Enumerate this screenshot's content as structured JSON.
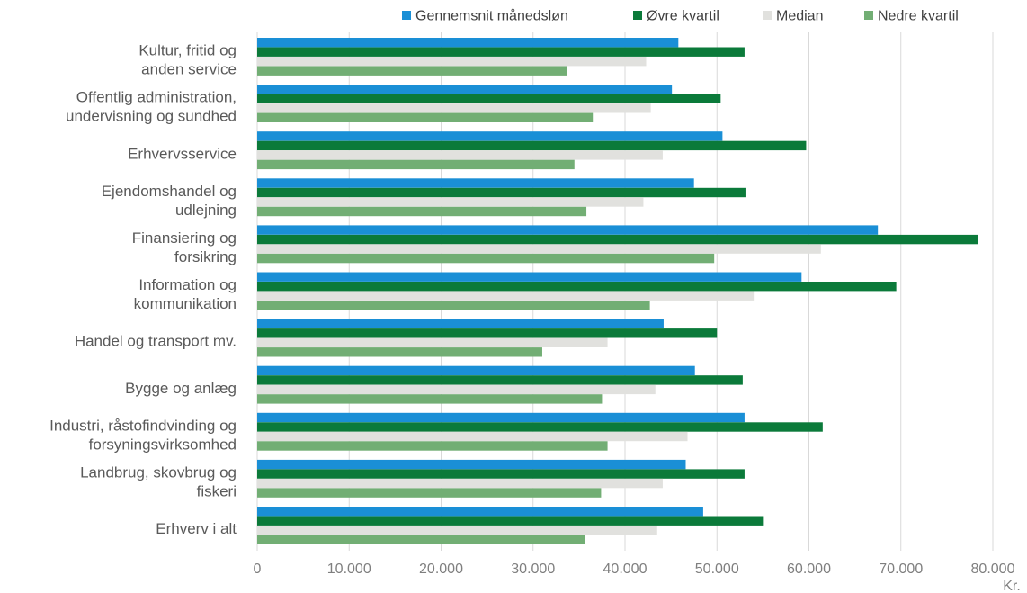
{
  "chart_data": {
    "type": "bar",
    "orientation": "horizontal",
    "categories": [
      [
        "Kultur, fritid og",
        "anden service"
      ],
      [
        "Offentlig administration,",
        "undervisning og sundhed"
      ],
      [
        "Erhvervsservice"
      ],
      [
        "Ejendomshandel og",
        "udlejning"
      ],
      [
        "Finansiering og",
        "forsikring"
      ],
      [
        "Information og",
        "kommunikation"
      ],
      [
        "Handel og transport mv."
      ],
      [
        "Bygge og anlæg"
      ],
      [
        "Industri, råstofindvinding og",
        "forsyningsvirksomhed"
      ],
      [
        "Landbrug, skovbrug og",
        "fiskeri"
      ],
      [
        "Erhverv i alt"
      ]
    ],
    "series": [
      {
        "name": "Gennemsnit månedsløn",
        "color": "#1a8fd6",
        "values": [
          45800,
          45100,
          50600,
          47500,
          67500,
          59200,
          44200,
          47600,
          53000,
          46600,
          48500
        ]
      },
      {
        "name": "Øvre kvartil",
        "color": "#0b7a3a",
        "values": [
          53000,
          50400,
          59700,
          53100,
          78400,
          69500,
          50000,
          52800,
          61500,
          53000,
          55000
        ]
      },
      {
        "name": "Median",
        "color": "#e1e1de",
        "values": [
          42300,
          42800,
          44100,
          42000,
          61300,
          54000,
          38100,
          43300,
          46800,
          44100,
          43500
        ]
      },
      {
        "name": "Nedre kvartil",
        "color": "#72ae74",
        "values": [
          33700,
          36500,
          34500,
          35800,
          49700,
          42700,
          31000,
          37500,
          38100,
          37400,
          35600
        ]
      }
    ],
    "xlim": [
      0,
      80000
    ],
    "xticks": [
      "0",
      "10.000",
      "20.000",
      "30.000",
      "40.000",
      "50.000",
      "60.000",
      "70.000",
      "80.000"
    ],
    "xlabel": "Kr.",
    "grid": true,
    "legend_position": "top"
  }
}
